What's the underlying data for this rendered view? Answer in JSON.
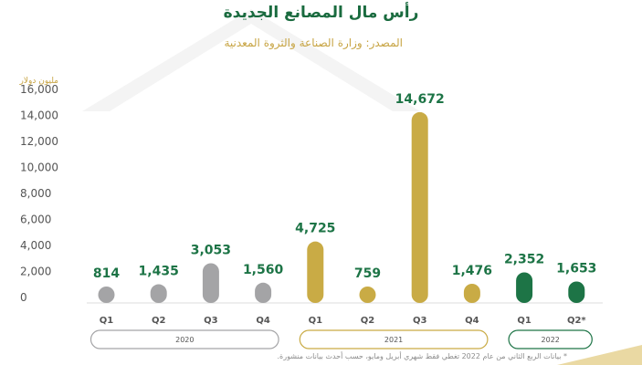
{
  "chart_data": {
    "type": "bar",
    "title": "رأس مال المصانع الجديدة",
    "subtitle": "المصدر: وزارة الصناعة والثروة المعدنية",
    "ylabel": "مليون دولار",
    "ylim": [
      0,
      16000
    ],
    "yticks": [
      0,
      2000,
      4000,
      6000,
      8000,
      10000,
      12000,
      14000,
      16000
    ],
    "grid": false,
    "categories": [
      "Q1",
      "Q2",
      "Q3",
      "Q4",
      "Q1",
      "Q2",
      "Q3",
      "Q4",
      "Q1",
      "Q2*"
    ],
    "values": [
      814,
      1435,
      3053,
      1560,
      4725,
      759,
      14672,
      1476,
      2352,
      1653
    ],
    "groups": [
      {
        "name": "2020",
        "start": 0,
        "count": 4,
        "color": "#a4a4a6"
      },
      {
        "name": "2021",
        "start": 4,
        "count": 4,
        "color": "#c9ab45"
      },
      {
        "name": "2022",
        "start": 8,
        "count": 2,
        "color": "#1d7446"
      }
    ],
    "label_colors": [
      "#1d7446",
      "#1d7446",
      "#1d7446",
      "#1d7446",
      "#1d7446",
      "#1d7446",
      "#1d7446",
      "#1d7446",
      "#1d7446",
      "#1d7446"
    ],
    "footnote": "* بيانات الربع الثاني من عام 2022 تغطي فقط شهري أبريل ومايو، حسب أحدث بيانات منشورة."
  }
}
